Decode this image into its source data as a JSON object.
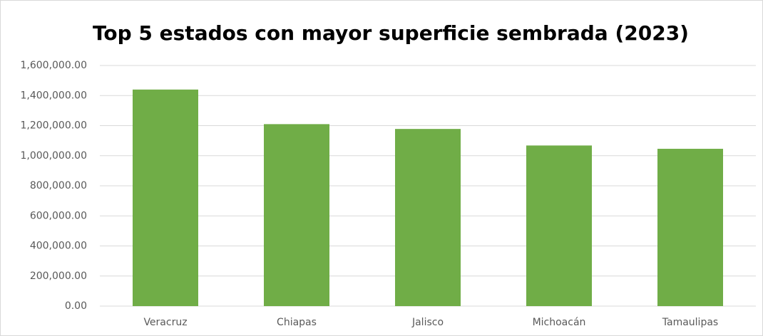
{
  "chart_data": {
    "type": "bar",
    "title": "Top 5 estados con mayor superficie sembrada (2023)",
    "categories": [
      "Veracruz",
      "Chiapas",
      "Jalisco",
      "Michoacán",
      "Tamaulipas"
    ],
    "values": [
      1440000,
      1210000,
      1178000,
      1068000,
      1046000
    ],
    "color": "#70ad47",
    "ylim": [
      0,
      1600000
    ],
    "yticks": [
      {
        "value": 0,
        "label": "0.00"
      },
      {
        "value": 200000,
        "label": "200,000.00"
      },
      {
        "value": 400000,
        "label": "400,000.00"
      },
      {
        "value": 600000,
        "label": "600,000.00"
      },
      {
        "value": 800000,
        "label": "800,000.00"
      },
      {
        "value": 1000000,
        "label": "1,000,000.00"
      },
      {
        "value": 1200000,
        "label": "1,200,000.00"
      },
      {
        "value": 1400000,
        "label": "1,400,000.00"
      },
      {
        "value": 1600000,
        "label": "1,600,000.00"
      }
    ],
    "grid": true
  }
}
